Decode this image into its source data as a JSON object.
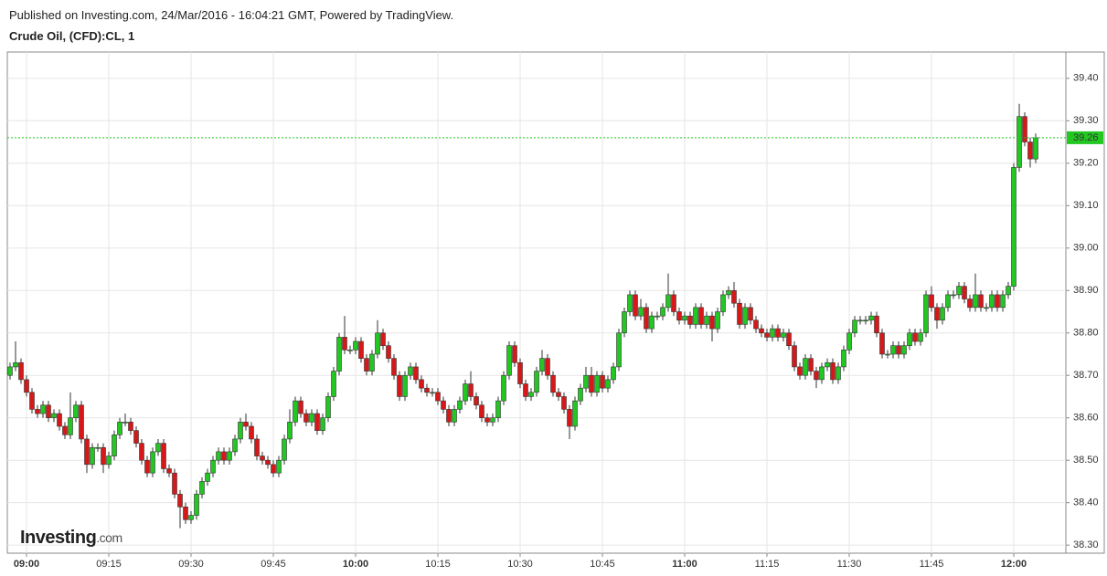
{
  "header": {
    "published": "Published on Investing.com, 24/Mar/2016 - 16:04:21 GMT, Powered by TradingView.",
    "instrument": "Crude Oil, (CFD):CL, 1"
  },
  "logo": {
    "name": "Investing",
    "suffix": ".com"
  },
  "chart_data": {
    "type": "candlestick",
    "up_color": "#22c722",
    "down_color": "#d81818",
    "last_price": 39.26,
    "last_price_color": "#22c722",
    "grid": true,
    "ylim": [
      38.281,
      39.462
    ],
    "yticks": [
      {
        "value": 38.3,
        "label": "38.30"
      },
      {
        "value": 38.4,
        "label": "38.40"
      },
      {
        "value": 38.5,
        "label": "38.50"
      },
      {
        "value": 38.6,
        "label": "38.60"
      },
      {
        "value": 38.7,
        "label": "38.70"
      },
      {
        "value": 38.8,
        "label": "38.80"
      },
      {
        "value": 38.9,
        "label": "38.90"
      },
      {
        "value": 39.0,
        "label": "39.00"
      },
      {
        "value": 39.1,
        "label": "39.10"
      },
      {
        "value": 39.2,
        "label": "39.20"
      },
      {
        "value": 39.3,
        "label": "39.30"
      },
      {
        "value": 39.4,
        "label": "39.40"
      }
    ],
    "categories": [
      null,
      null,
      null,
      "09:00",
      null,
      null,
      null,
      null,
      null,
      null,
      null,
      null,
      null,
      null,
      null,
      null,
      null,
      null,
      "09:15",
      null,
      null,
      null,
      null,
      null,
      null,
      null,
      null,
      null,
      null,
      null,
      null,
      null,
      null,
      "09:30",
      null,
      null,
      null,
      null,
      null,
      null,
      null,
      null,
      null,
      null,
      null,
      null,
      null,
      null,
      "09:45",
      null,
      null,
      null,
      null,
      null,
      null,
      null,
      null,
      null,
      null,
      null,
      null,
      null,
      null,
      "10:00",
      null,
      null,
      null,
      null,
      null,
      null,
      null,
      null,
      null,
      null,
      null,
      null,
      null,
      null,
      "10:15",
      null,
      null,
      null,
      null,
      null,
      null,
      null,
      null,
      null,
      null,
      null,
      null,
      null,
      null,
      "10:30",
      null,
      null,
      null,
      null,
      null,
      null,
      null,
      null,
      null,
      null,
      null,
      null,
      null,
      null,
      "10:45",
      null,
      null,
      null,
      null,
      null,
      null,
      null,
      null,
      null,
      null,
      null,
      null,
      null,
      null,
      "11:00",
      null,
      null,
      null,
      null,
      null,
      null,
      null,
      null,
      null,
      null,
      null,
      null,
      null,
      null,
      "11:15",
      null,
      null,
      null,
      null,
      null,
      null,
      null,
      null,
      null,
      null,
      null,
      null,
      null,
      null,
      "11:30",
      null,
      null,
      null,
      null,
      null,
      null,
      null,
      null,
      null,
      null,
      null,
      null,
      null,
      null,
      "11:45",
      null,
      null,
      null,
      null,
      null,
      null,
      null,
      null,
      null,
      null,
      null,
      null,
      null,
      null,
      "12:00",
      null,
      null,
      null,
      null
    ],
    "open": [
      38.7,
      38.72,
      38.73,
      38.69,
      38.66,
      38.62,
      38.61,
      38.63,
      38.6,
      38.61,
      38.58,
      38.56,
      38.6,
      38.63,
      38.55,
      38.49,
      38.53,
      38.53,
      38.49,
      38.51,
      38.56,
      38.59,
      38.59,
      38.57,
      38.54,
      38.5,
      38.47,
      38.52,
      38.54,
      38.48,
      38.47,
      38.42,
      38.39,
      38.36,
      38.37,
      38.42,
      38.45,
      38.47,
      38.5,
      38.52,
      38.5,
      38.52,
      38.55,
      38.59,
      38.58,
      38.55,
      38.51,
      38.5,
      38.49,
      38.47,
      38.5,
      38.55,
      38.59,
      38.64,
      38.61,
      38.59,
      38.61,
      38.57,
      38.6,
      38.65,
      38.71,
      38.79,
      38.76,
      38.76,
      38.78,
      38.74,
      38.71,
      38.75,
      38.8,
      38.77,
      38.74,
      38.7,
      38.65,
      38.7,
      38.72,
      38.69,
      38.67,
      38.66,
      38.66,
      38.64,
      38.62,
      38.59,
      38.62,
      38.64,
      38.68,
      38.65,
      38.63,
      38.6,
      38.59,
      38.6,
      38.64,
      38.7,
      38.77,
      38.73,
      38.68,
      38.65,
      38.66,
      38.71,
      38.74,
      38.7,
      38.66,
      38.65,
      38.62,
      38.58,
      38.64,
      38.67,
      38.7,
      38.66,
      38.7,
      38.67,
      38.69,
      38.72,
      38.8,
      38.85,
      38.89,
      38.84,
      38.86,
      38.81,
      38.84,
      38.84,
      38.86,
      38.89,
      38.85,
      38.83,
      38.84,
      38.82,
      38.86,
      38.82,
      38.84,
      38.81,
      38.85,
      38.89,
      38.9,
      38.87,
      38.82,
      38.86,
      38.83,
      38.81,
      38.8,
      38.79,
      38.81,
      38.79,
      38.8,
      38.77,
      38.72,
      38.7,
      38.74,
      38.71,
      38.69,
      38.72,
      38.73,
      38.69,
      38.72,
      38.76,
      38.8,
      38.83,
      38.83,
      38.83,
      38.84,
      38.8,
      38.75,
      38.75,
      38.77,
      38.75,
      38.77,
      38.8,
      38.78,
      38.8,
      38.89,
      38.86,
      38.83,
      38.86,
      38.89,
      38.89,
      38.91,
      38.88,
      38.86,
      38.89,
      38.86,
      38.86,
      38.89,
      38.86,
      38.89,
      38.91,
      39.19,
      39.31,
      39.25,
      39.21
    ],
    "high": [
      38.73,
      38.78,
      38.74,
      38.7,
      38.67,
      38.63,
      38.64,
      38.64,
      38.62,
      38.62,
      38.59,
      38.66,
      38.64,
      38.64,
      38.56,
      38.54,
      38.54,
      38.54,
      38.52,
      38.57,
      38.6,
      38.61,
      38.6,
      38.58,
      38.55,
      38.51,
      38.53,
      38.55,
      38.55,
      38.49,
      38.48,
      38.43,
      38.4,
      38.38,
      38.43,
      38.46,
      38.48,
      38.51,
      38.53,
      38.53,
      38.53,
      38.56,
      38.6,
      38.61,
      38.59,
      38.56,
      38.52,
      38.51,
      38.5,
      38.51,
      38.56,
      38.62,
      38.65,
      38.65,
      38.62,
      38.62,
      38.62,
      38.61,
      38.66,
      38.72,
      38.8,
      38.84,
      38.77,
      38.79,
      38.79,
      38.75,
      38.76,
      38.83,
      38.81,
      38.78,
      38.75,
      38.71,
      38.71,
      38.73,
      38.73,
      38.7,
      38.68,
      38.67,
      38.67,
      38.65,
      38.63,
      38.63,
      38.65,
      38.69,
      38.71,
      38.66,
      38.64,
      38.61,
      38.61,
      38.65,
      38.71,
      38.78,
      38.78,
      38.74,
      38.69,
      38.67,
      38.72,
      38.76,
      38.75,
      38.71,
      38.67,
      38.66,
      38.63,
      38.65,
      38.68,
      38.72,
      38.72,
      38.71,
      38.71,
      38.7,
      38.73,
      38.81,
      38.86,
      38.9,
      38.9,
      38.88,
      38.87,
      38.85,
      38.85,
      38.87,
      38.94,
      38.9,
      38.86,
      38.85,
      38.85,
      38.87,
      38.87,
      38.85,
      38.85,
      38.86,
      38.9,
      38.91,
      38.92,
      38.88,
      38.87,
      38.87,
      38.84,
      38.82,
      38.81,
      38.82,
      38.82,
      38.81,
      38.81,
      38.78,
      38.73,
      38.75,
      38.75,
      38.72,
      38.73,
      38.74,
      38.74,
      38.73,
      38.77,
      38.81,
      38.84,
      38.84,
      38.84,
      38.85,
      38.85,
      38.81,
      38.76,
      38.78,
      38.78,
      38.78,
      38.81,
      38.81,
      38.81,
      38.9,
      38.91,
      38.87,
      38.87,
      38.9,
      38.9,
      38.92,
      38.92,
      38.89,
      38.94,
      38.9,
      38.87,
      38.9,
      38.9,
      38.9,
      38.92,
      39.2,
      39.34,
      39.32,
      39.26,
      39.27
    ],
    "low": [
      38.69,
      38.71,
      38.68,
      38.65,
      38.61,
      38.6,
      38.6,
      38.59,
      38.59,
      38.57,
      38.55,
      38.55,
      38.59,
      38.54,
      38.47,
      38.48,
      38.52,
      38.47,
      38.48,
      38.5,
      38.55,
      38.58,
      38.56,
      38.53,
      38.49,
      38.46,
      38.46,
      38.51,
      38.47,
      38.46,
      38.41,
      38.34,
      38.35,
      38.35,
      38.36,
      38.41,
      38.44,
      38.46,
      38.49,
      38.49,
      38.49,
      38.51,
      38.54,
      38.57,
      38.54,
      38.5,
      38.49,
      38.48,
      38.46,
      38.46,
      38.49,
      38.54,
      38.58,
      38.6,
      38.58,
      38.58,
      38.56,
      38.56,
      38.59,
      38.64,
      38.7,
      38.75,
      38.75,
      38.75,
      38.73,
      38.7,
      38.7,
      38.74,
      38.76,
      38.73,
      38.69,
      38.64,
      38.64,
      38.69,
      38.68,
      38.66,
      38.65,
      38.65,
      38.63,
      38.61,
      38.58,
      38.58,
      38.61,
      38.63,
      38.64,
      38.62,
      38.59,
      38.58,
      38.58,
      38.59,
      38.63,
      38.69,
      38.72,
      38.67,
      38.64,
      38.64,
      38.65,
      38.7,
      38.69,
      38.65,
      38.64,
      38.61,
      38.55,
      38.57,
      38.63,
      38.66,
      38.65,
      38.65,
      38.66,
      38.66,
      38.68,
      38.71,
      38.79,
      38.84,
      38.83,
      38.83,
      38.8,
      38.8,
      38.83,
      38.83,
      38.85,
      38.84,
      38.82,
      38.82,
      38.81,
      38.81,
      38.81,
      38.81,
      38.78,
      38.8,
      38.84,
      38.88,
      38.86,
      38.81,
      38.81,
      38.82,
      38.8,
      38.79,
      38.78,
      38.78,
      38.78,
      38.78,
      38.76,
      38.71,
      38.69,
      38.69,
      38.7,
      38.67,
      38.68,
      38.71,
      38.68,
      38.68,
      38.71,
      38.75,
      38.79,
      38.82,
      38.82,
      38.82,
      38.79,
      38.74,
      38.74,
      38.74,
      38.74,
      38.74,
      38.76,
      38.77,
      38.77,
      38.79,
      38.85,
      38.81,
      38.82,
      38.85,
      38.88,
      38.88,
      38.87,
      38.85,
      38.85,
      38.85,
      38.85,
      38.85,
      38.85,
      38.85,
      38.88,
      38.9,
      39.18,
      39.24,
      39.19,
      39.2
    ],
    "close": [
      38.72,
      38.73,
      38.69,
      38.66,
      38.62,
      38.61,
      38.63,
      38.6,
      38.61,
      38.58,
      38.56,
      38.6,
      38.63,
      38.55,
      38.49,
      38.53,
      38.53,
      38.49,
      38.51,
      38.56,
      38.59,
      38.59,
      38.57,
      38.54,
      38.5,
      38.47,
      38.52,
      38.54,
      38.48,
      38.47,
      38.42,
      38.39,
      38.36,
      38.37,
      38.42,
      38.45,
      38.47,
      38.5,
      38.52,
      38.5,
      38.52,
      38.55,
      38.59,
      38.58,
      38.55,
      38.51,
      38.5,
      38.49,
      38.47,
      38.5,
      38.55,
      38.59,
      38.64,
      38.61,
      38.59,
      38.61,
      38.57,
      38.6,
      38.65,
      38.71,
      38.79,
      38.76,
      38.76,
      38.78,
      38.74,
      38.71,
      38.75,
      38.8,
      38.77,
      38.74,
      38.7,
      38.65,
      38.7,
      38.72,
      38.69,
      38.67,
      38.66,
      38.66,
      38.64,
      38.62,
      38.59,
      38.62,
      38.64,
      38.68,
      38.65,
      38.63,
      38.6,
      38.59,
      38.6,
      38.64,
      38.7,
      38.77,
      38.73,
      38.68,
      38.65,
      38.66,
      38.71,
      38.74,
      38.7,
      38.66,
      38.65,
      38.62,
      38.58,
      38.64,
      38.67,
      38.7,
      38.66,
      38.7,
      38.67,
      38.69,
      38.72,
      38.8,
      38.85,
      38.89,
      38.84,
      38.86,
      38.81,
      38.84,
      38.84,
      38.86,
      38.89,
      38.85,
      38.83,
      38.84,
      38.82,
      38.86,
      38.82,
      38.84,
      38.81,
      38.85,
      38.89,
      38.9,
      38.87,
      38.82,
      38.86,
      38.83,
      38.81,
      38.8,
      38.79,
      38.81,
      38.79,
      38.8,
      38.77,
      38.72,
      38.7,
      38.74,
      38.71,
      38.69,
      38.72,
      38.73,
      38.69,
      38.72,
      38.76,
      38.8,
      38.83,
      38.83,
      38.83,
      38.84,
      38.8,
      38.75,
      38.75,
      38.77,
      38.75,
      38.77,
      38.8,
      38.78,
      38.8,
      38.89,
      38.86,
      38.83,
      38.86,
      38.89,
      38.89,
      38.91,
      38.88,
      38.86,
      38.89,
      38.86,
      38.86,
      38.89,
      38.86,
      38.89,
      38.91,
      39.19,
      39.31,
      39.25,
      39.21,
      39.26
    ]
  }
}
